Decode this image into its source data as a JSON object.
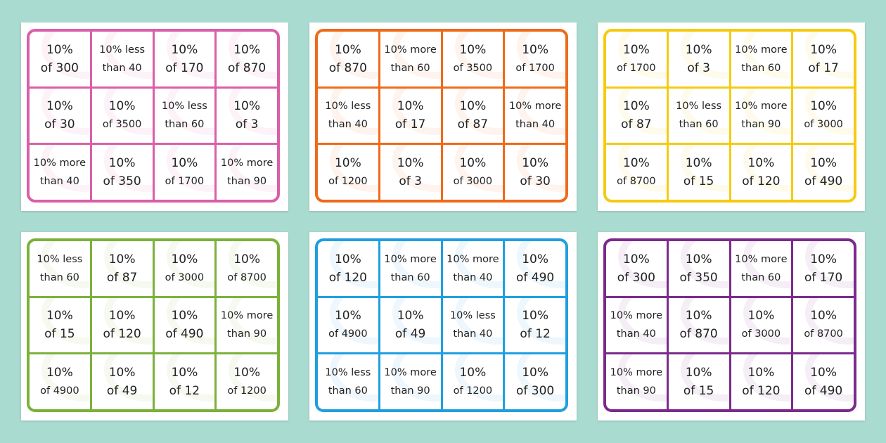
{
  "cards": [
    {
      "cells": [
        [
          [
            "10%",
            "of 300"
          ],
          [
            "10% less",
            "than 40"
          ],
          [
            "10%",
            "of 170"
          ],
          [
            "10%",
            "of 870"
          ]
        ],
        [
          [
            "10%",
            "of 30"
          ],
          [
            "10%",
            "of 3500"
          ],
          [
            "10% less",
            "than 60"
          ],
          [
            "10%",
            "of 3"
          ]
        ],
        [
          [
            "10% more",
            "than 40"
          ],
          [
            "10%",
            "of 350"
          ],
          [
            "10%",
            "of 1700"
          ],
          [
            "10% more",
            "than 90"
          ]
        ]
      ]
    },
    {
      "cells": [
        [
          [
            "10%",
            "of 870"
          ],
          [
            "10% more",
            "than 60"
          ],
          [
            "10%",
            "of 3500"
          ],
          [
            "10%",
            "of 1700"
          ]
        ],
        [
          [
            "10% less",
            "than 40"
          ],
          [
            "10%",
            "of 17"
          ],
          [
            "10%",
            "of 87"
          ],
          [
            "10% more",
            "than 40"
          ]
        ],
        [
          [
            "10%",
            "of 1200"
          ],
          [
            "10%",
            "of 3"
          ],
          [
            "10%",
            "of 3000"
          ],
          [
            "10%",
            "of 30"
          ]
        ]
      ]
    },
    {
      "cells": [
        [
          [
            "10%",
            "of 1700"
          ],
          [
            "10%",
            "of 3"
          ],
          [
            "10% more",
            "than 60"
          ],
          [
            "10%",
            "of 17"
          ]
        ],
        [
          [
            "10%",
            "of 87"
          ],
          [
            "10% less",
            "than 60"
          ],
          [
            "10% more",
            "than 90"
          ],
          [
            "10%",
            "of 3000"
          ]
        ],
        [
          [
            "10%",
            "of 8700"
          ],
          [
            "10%",
            "of 15"
          ],
          [
            "10%",
            "of 120"
          ],
          [
            "10%",
            "of 490"
          ]
        ]
      ]
    },
    {
      "cells": [
        [
          [
            "10% less",
            "than 60"
          ],
          [
            "10%",
            "of 87"
          ],
          [
            "10%",
            "of 3000"
          ],
          [
            "10%",
            "of 8700"
          ]
        ],
        [
          [
            "10%",
            "of 15"
          ],
          [
            "10%",
            "of 120"
          ],
          [
            "10%",
            "of 490"
          ],
          [
            "10% more",
            "than 90"
          ]
        ],
        [
          [
            "10%",
            "of 4900"
          ],
          [
            "10%",
            "of 49"
          ],
          [
            "10%",
            "of 12"
          ],
          [
            "10%",
            "of 1200"
          ]
        ]
      ]
    },
    {
      "cells": [
        [
          [
            "10%",
            "of 120"
          ],
          [
            "10% more",
            "than 60"
          ],
          [
            "10% more",
            "than 40"
          ],
          [
            "10%",
            "of 490"
          ]
        ],
        [
          [
            "10%",
            "of 4900"
          ],
          [
            "10%",
            "of 49"
          ],
          [
            "10% less",
            "than 40"
          ],
          [
            "10%",
            "of 12"
          ]
        ],
        [
          [
            "10% less",
            "than 60"
          ],
          [
            "10% more",
            "than 90"
          ],
          [
            "10%",
            "of 1200"
          ],
          [
            "10%",
            "of 300"
          ]
        ]
      ]
    },
    {
      "cells": [
        [
          [
            "10%",
            "of 300"
          ],
          [
            "10%",
            "of 350"
          ],
          [
            "10% more",
            "than 60"
          ],
          [
            "10%",
            "of 170"
          ]
        ],
        [
          [
            "10% more",
            "than 40"
          ],
          [
            "10%",
            "of 870"
          ],
          [
            "10%",
            "of 3000"
          ],
          [
            "10%",
            "of 8700"
          ]
        ],
        [
          [
            "10% more",
            "than 90"
          ],
          [
            "10%",
            "of 15"
          ],
          [
            "10%",
            "of 120"
          ],
          [
            "10%",
            "of 490"
          ]
        ]
      ]
    }
  ]
}
